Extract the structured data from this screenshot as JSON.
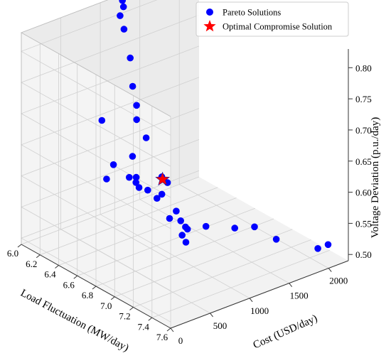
{
  "chart_data": {
    "type": "scatter",
    "projection": "3d",
    "x_axis": {
      "label": "Cost (USD/day)",
      "ticks": [
        "0",
        "500",
        "1000",
        "1500",
        "2000"
      ],
      "range": [
        0,
        2250
      ]
    },
    "y_axis": {
      "label": "Load Fluctuation (MW/day)",
      "ticks": [
        "6.0",
        "6.2",
        "6.4",
        "6.6",
        "6.8",
        "7.0",
        "7.2",
        "7.4",
        "7.6"
      ],
      "range": [
        6.0,
        7.6
      ]
    },
    "z_axis": {
      "label": "Voltage Deviation (p.u./day)",
      "ticks": [
        "0.50",
        "0.55",
        "0.60",
        "0.65",
        "0.70",
        "0.75",
        "0.80"
      ],
      "range": [
        0.49,
        0.83
      ]
    },
    "grid": true,
    "legend_position": "top-right",
    "series": [
      {
        "name": "Pareto Solutions",
        "marker": "circle",
        "color": "#0000ff",
        "points": [
          [
            1580,
            6.0,
            0.585
          ],
          [
            1460,
            6.0,
            0.62
          ],
          [
            1400,
            6.05,
            0.65
          ],
          [
            1350,
            6.05,
            0.683
          ],
          [
            1320,
            6.05,
            0.73
          ],
          [
            1300,
            6.0,
            0.773
          ],
          [
            1250,
            6.0,
            0.797
          ],
          [
            1280,
            6.0,
            0.82
          ],
          [
            1270,
            6.02,
            0.812
          ],
          [
            1020,
            6.0,
            0.64
          ],
          [
            1020,
            6.05,
            0.55
          ],
          [
            1130,
            6.2,
            0.56
          ],
          [
            1100,
            6.3,
            0.57
          ],
          [
            930,
            6.2,
            0.59
          ],
          [
            935,
            6.4,
            0.62
          ],
          [
            900,
            6.5,
            0.58
          ],
          [
            860,
            6.5,
            0.59
          ],
          [
            1050,
            6.7,
            0.54
          ],
          [
            890,
            6.7,
            0.58
          ],
          [
            1040,
            6.9,
            0.54
          ],
          [
            780,
            7.0,
            0.59
          ],
          [
            720,
            7.15,
            0.58
          ],
          [
            600,
            7.2,
            0.6
          ],
          [
            500,
            7.3,
            0.59
          ],
          [
            480,
            7.1,
            0.64
          ],
          [
            420,
            7.15,
            0.675
          ],
          [
            1830,
            6.95,
            0.51
          ],
          [
            1580,
            6.95,
            0.52
          ],
          [
            1020,
            6.9,
            0.52
          ],
          [
            1510,
            6.7,
            0.505
          ],
          [
            1810,
            7.2,
            0.512
          ],
          [
            1850,
            6.0,
            0.5
          ],
          [
            1600,
            6.0,
            0.5
          ],
          [
            2100,
            7.4,
            0.5
          ],
          [
            2230,
            7.4,
            0.5
          ]
        ]
      },
      {
        "name": "Optimal Compromise Solution",
        "marker": "star",
        "color": "#ff0000",
        "points": [
          [
            1020,
            6.65,
            0.6
          ]
        ]
      }
    ]
  }
}
